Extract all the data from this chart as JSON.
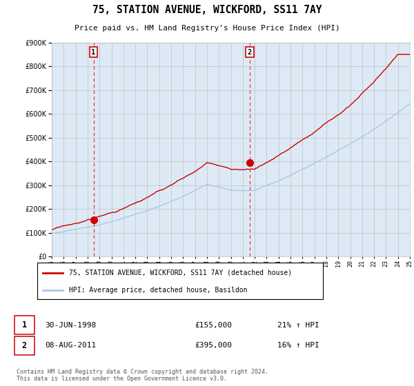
{
  "title": "75, STATION AVENUE, WICKFORD, SS11 7AY",
  "subtitle": "Price paid vs. HM Land Registry's House Price Index (HPI)",
  "x_start_year": 1995,
  "x_end_year": 2025,
  "y_min": 0,
  "y_max": 900000,
  "y_ticks": [
    0,
    100000,
    200000,
    300000,
    400000,
    500000,
    600000,
    700000,
    800000,
    900000
  ],
  "y_tick_labels": [
    "£0",
    "£100K",
    "£200K",
    "£300K",
    "£400K",
    "£500K",
    "£600K",
    "£700K",
    "£800K",
    "£900K"
  ],
  "hpi_color": "#a8c8e8",
  "price_color": "#cc0000",
  "vline_color": "#ee3333",
  "bg_color": "#ddeaf5",
  "plot_bg": "#ffffff",
  "grid_color": "#bbbbbb",
  "sale1_year": 1998.5,
  "sale1_price": 155000,
  "sale2_year": 2011.58,
  "sale2_price": 395000,
  "sale1_date": "30-JUN-1998",
  "sale1_pct": "21% ↑ HPI",
  "sale2_date": "08-AUG-2011",
  "sale2_pct": "16% ↑ HPI",
  "legend_line1": "75, STATION AVENUE, WICKFORD, SS11 7AY (detached house)",
  "legend_line2": "HPI: Average price, detached house, Basildon",
  "footer": "Contains HM Land Registry data © Crown copyright and database right 2024.\nThis data is licensed under the Open Government Licence v3.0."
}
